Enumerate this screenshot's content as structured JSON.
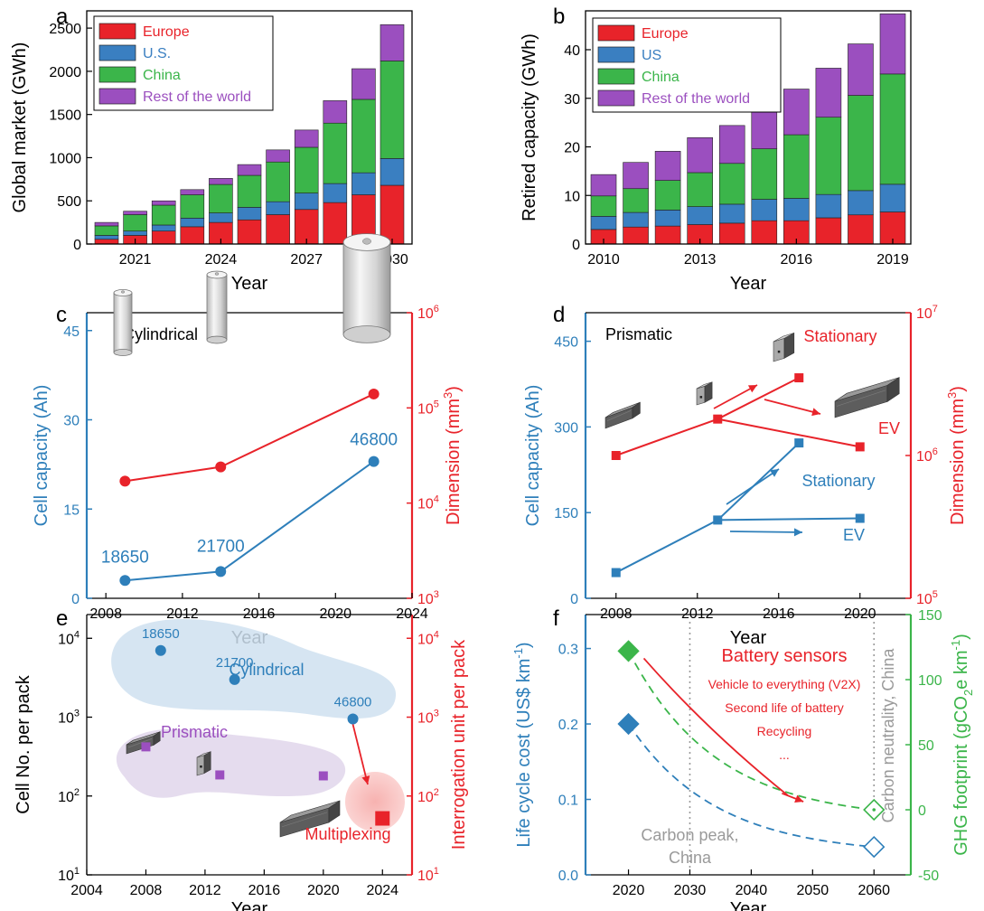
{
  "chart_data": [
    {
      "panel": "a",
      "type": "bar",
      "stacked": true,
      "xlabel": "Year",
      "ylabel": "Global market (GWh)",
      "ylim": [
        0,
        2700
      ],
      "yticks": [
        0,
        500,
        1000,
        1500,
        2000,
        2500
      ],
      "xticks": [
        2021,
        2024,
        2027,
        2030
      ],
      "categories": [
        2020,
        2021,
        2022,
        2023,
        2024,
        2025,
        2026,
        2027,
        2028,
        2029,
        2030
      ],
      "series": [
        {
          "name": "Europe",
          "color": "#e8232a",
          "values": [
            55,
            100,
            150,
            200,
            250,
            280,
            340,
            400,
            480,
            570,
            680
          ]
        },
        {
          "name": "U.S.",
          "color": "#3a7fc1",
          "values": [
            45,
            50,
            70,
            100,
            110,
            145,
            150,
            190,
            220,
            255,
            310
          ]
        },
        {
          "name": "China",
          "color": "#3bb54a",
          "values": [
            110,
            190,
            230,
            270,
            330,
            370,
            460,
            530,
            700,
            850,
            1130
          ]
        },
        {
          "name": "Rest of the world",
          "color": "#9b4fbf",
          "values": [
            40,
            40,
            50,
            60,
            70,
            125,
            140,
            200,
            260,
            355,
            420
          ]
        }
      ],
      "legend": "top-left"
    },
    {
      "panel": "b",
      "type": "bar",
      "stacked": true,
      "xlabel": "Year",
      "ylabel": "Retired capacity (GWh)",
      "ylim": [
        0,
        48
      ],
      "yticks": [
        0,
        10,
        20,
        30,
        40
      ],
      "xticks": [
        2010,
        2013,
        2016,
        2019
      ],
      "categories": [
        2010,
        2011,
        2012,
        2013,
        2014,
        2015,
        2016,
        2017,
        2018,
        2019
      ],
      "series": [
        {
          "name": "Europe",
          "color": "#e8232a",
          "values": [
            3.0,
            3.5,
            3.7,
            4.0,
            4.3,
            4.8,
            4.8,
            5.4,
            6.0,
            6.6
          ]
        },
        {
          "name": "US",
          "color": "#3a7fc1",
          "values": [
            2.7,
            3.0,
            3.3,
            3.7,
            3.9,
            4.4,
            4.6,
            4.8,
            5.0,
            5.7
          ]
        },
        {
          "name": "China",
          "color": "#3bb54a",
          "values": [
            4.2,
            4.9,
            6.1,
            7.0,
            8.4,
            10.4,
            13.1,
            15.9,
            19.6,
            22.7
          ]
        },
        {
          "name": "Rest of the world",
          "color": "#9b4fbf",
          "values": [
            4.4,
            5.4,
            6.0,
            7.2,
            7.8,
            8.2,
            9.4,
            10.1,
            10.6,
            12.4
          ]
        }
      ],
      "legend": "top-left"
    },
    {
      "panel": "c",
      "type": "line",
      "xlabel": "Year",
      "ylabel": "Cell capacity (Ah)",
      "y2label": "Dimension (mm",
      "y2label_sup": "3",
      "title": "Cylindrical",
      "xlim": [
        2007,
        2024
      ],
      "xticks": [
        2008,
        2012,
        2016,
        2020,
        2024
      ],
      "ylim": [
        0,
        48
      ],
      "yticks": [
        0,
        15,
        30,
        45
      ],
      "y2lim": [
        1000,
        1000000
      ],
      "y2scale": "log",
      "y2ticks": [
        {
          "v": 1000,
          "b": "10",
          "e": "3"
        },
        {
          "v": 10000,
          "b": "10",
          "e": "4"
        },
        {
          "v": 100000,
          "b": "10",
          "e": "5"
        },
        {
          "v": 1000000,
          "b": "10",
          "e": "6"
        }
      ],
      "series": [
        {
          "name": "Cell capacity",
          "axis": "left",
          "color": "#2e7fba",
          "x": [
            2009,
            2014,
            2022
          ],
          "y": [
            3,
            4.5,
            23
          ],
          "labels": [
            "18650",
            "21700",
            "46800"
          ]
        },
        {
          "name": "Dimension",
          "axis": "right",
          "color": "#e8232a",
          "x": [
            2009,
            2014,
            2022
          ],
          "y": [
            17000,
            24000,
            140000
          ]
        }
      ]
    },
    {
      "panel": "d",
      "type": "line",
      "xlabel": "Year",
      "ylabel": "Cell capacity (Ah)",
      "y2label": "Dimension (mm",
      "y2label_sup": "3",
      "title": "Prismatic",
      "xlim": [
        2006.5,
        2022.5
      ],
      "xticks": [
        2008,
        2012,
        2016,
        2020
      ],
      "ylim": [
        0,
        500
      ],
      "yticks": [
        0,
        150,
        300,
        450
      ],
      "y2lim": [
        100000,
        10000000
      ],
      "y2scale": "log",
      "y2ticks": [
        {
          "v": 100000,
          "b": "10",
          "e": "5"
        },
        {
          "v": 1000000,
          "b": "10",
          "e": "6"
        },
        {
          "v": 10000000,
          "b": "10",
          "e": "7"
        }
      ],
      "series": [
        {
          "name": "Cell capacity Stationary",
          "axis": "left",
          "color": "#2e7fba",
          "x": [
            2008,
            2013,
            2017
          ],
          "y": [
            45,
            137,
            272
          ]
        },
        {
          "name": "Cell capacity EV",
          "axis": "left",
          "color": "#2e7fba",
          "x": [
            2013,
            2020
          ],
          "y": [
            137,
            140
          ]
        },
        {
          "name": "Dimension Stationary",
          "axis": "right",
          "color": "#e8232a",
          "x": [
            2008,
            2013,
            2017
          ],
          "y": [
            1000000,
            1800000,
            3500000
          ]
        },
        {
          "name": "Dimension EV",
          "axis": "right",
          "color": "#e8232a",
          "x": [
            2013,
            2020
          ],
          "y": [
            1800000,
            1150000
          ]
        }
      ],
      "annotations": {
        "blue_stationary": "Stationary",
        "blue_ev": "EV",
        "red_stationary": "Stationary",
        "red_ev": "EV"
      }
    },
    {
      "panel": "e",
      "type": "scatter",
      "xlabel": "Year",
      "ylabel": "Cell No. per pack",
      "y2label": "Interrogation unit per pack",
      "xlim": [
        2004,
        2026
      ],
      "xticks": [
        2004,
        2008,
        2012,
        2016,
        2020,
        2024
      ],
      "yscale": "log",
      "ylim": [
        10,
        20000
      ],
      "yticks": [
        {
          "v": 10,
          "b": "10",
          "e": "1"
        },
        {
          "v": 100,
          "b": "10",
          "e": "2"
        },
        {
          "v": 1000,
          "b": "10",
          "e": "3"
        },
        {
          "v": 10000,
          "b": "10",
          "e": "4"
        }
      ],
      "y2ticks": [
        {
          "v": 10,
          "b": "10",
          "e": "1"
        },
        {
          "v": 100,
          "b": "10",
          "e": "2"
        },
        {
          "v": 1000,
          "b": "10",
          "e": "3"
        },
        {
          "v": 10000,
          "b": "10",
          "e": "4"
        }
      ],
      "series": [
        {
          "name": "Cylindrical",
          "color": "#2e7fba",
          "marker": "circle",
          "x": [
            2009,
            2014,
            2022
          ],
          "y": [
            7000,
            3000,
            950
          ],
          "labels": [
            "18650",
            "21700",
            "46800"
          ]
        },
        {
          "name": "Prismatic",
          "color": "#9b4fbf",
          "marker": "square",
          "x": [
            2008,
            2013,
            2020
          ],
          "y": [
            420,
            185,
            180
          ]
        },
        {
          "name": "Multiplexing",
          "color": "#e8232a",
          "marker": "square",
          "x": [
            2024
          ],
          "y": [
            52
          ]
        }
      ]
    },
    {
      "panel": "f",
      "type": "line",
      "xlabel": "Year",
      "ylabel": "Life cycle cost (US$ km",
      "ylabel_sup": "-1",
      "y2label": "GHG footprint (gCO",
      "y2label_sub": "2",
      "y2label_tail": "e km",
      "y2label_sup": "-1",
      "xlim": [
        2013,
        2066
      ],
      "xticks": [
        2020,
        2030,
        2040,
        2050,
        2060
      ],
      "ylim": [
        0,
        0.345
      ],
      "yticks": [
        "0.0",
        "0.1",
        "0.2",
        "0.3"
      ],
      "y2lim": [
        -50,
        150
      ],
      "y2ticks": [
        "-50",
        "0",
        "50",
        "100",
        "150"
      ],
      "series": [
        {
          "name": "Life cycle cost",
          "axis": "left",
          "color": "#2e7fba",
          "x": [
            2020,
            2060
          ],
          "y": [
            0.2,
            0.037
          ]
        },
        {
          "name": "GHG footprint",
          "axis": "right",
          "color": "#3bb54a",
          "x": [
            2020,
            2060
          ],
          "y": [
            122,
            0
          ]
        }
      ],
      "annotations": {
        "carbon_peak": "Carbon peak,",
        "carbon_peak_2": "China",
        "carbon_neutrality": "Carbon neutrality, China",
        "sensors_title": "Battery sensors",
        "sensors_items": [
          "Vehicle to everything (V2X)",
          "Second life of battery",
          "Recycling",
          "..."
        ]
      }
    }
  ],
  "panel_labels": [
    "a",
    "b",
    "c",
    "d",
    "e",
    "f"
  ],
  "colors": {
    "blue": "#2e7fba",
    "red": "#e8232a",
    "green": "#3bb54a",
    "purple": "#9b4fbf",
    "gray": "#9a9a9a"
  }
}
